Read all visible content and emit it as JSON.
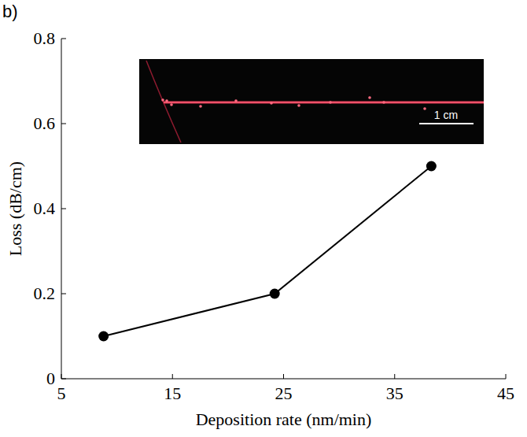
{
  "chart_data": {
    "type": "line",
    "panel_label": "b)",
    "x_label": "Deposition rate (nm/min)",
    "y_label": "Loss (dB/cm)",
    "inset_scale_label": "1 cm",
    "x": [
      8.8,
      24.2,
      38.3
    ],
    "values": [
      0.1,
      0.2,
      0.5
    ],
    "color": "#000000",
    "marker": "circle",
    "line_style": "solid",
    "xlim": [
      5,
      45
    ],
    "xticks": [
      5,
      15,
      25,
      35,
      45
    ],
    "ylim": [
      0,
      0.8
    ],
    "yticks": [
      0,
      0.2,
      0.4,
      0.6,
      0.8
    ],
    "grid": false
  }
}
